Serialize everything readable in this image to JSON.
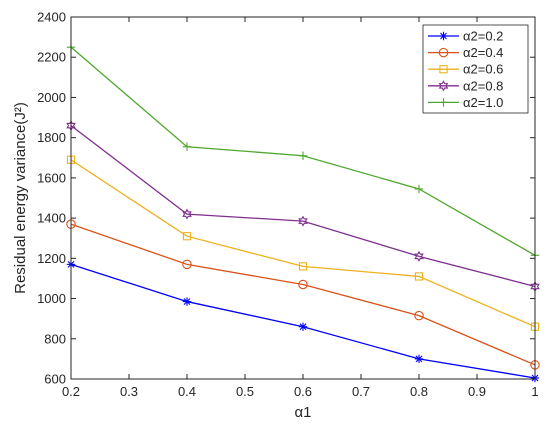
{
  "chart_data": {
    "type": "line",
    "xlabel": "α1",
    "ylabel": "Residual energy variance(J²)",
    "x": [
      0.2,
      0.4,
      0.6,
      0.8,
      1.0
    ],
    "xticks": [
      "0.2",
      "0.3",
      "0.4",
      "0.5",
      "0.6",
      "0.7",
      "0.8",
      "0.9",
      "1"
    ],
    "yticks": [
      "600",
      "800",
      "1000",
      "1200",
      "1400",
      "1600",
      "1800",
      "2000",
      "2200",
      "2400"
    ],
    "xlim": [
      0.2,
      1.0
    ],
    "ylim": [
      600,
      2400
    ],
    "grid": false,
    "legend_position": "top-right",
    "series": [
      {
        "name": "α2=0.2",
        "color": "#0000ff",
        "marker": "asterisk",
        "values": [
          1170,
          985,
          860,
          700,
          605
        ]
      },
      {
        "name": "α2=0.4",
        "color": "#d95319",
        "marker": "circle",
        "values": [
          1370,
          1170,
          1070,
          915,
          670
        ]
      },
      {
        "name": "α2=0.6",
        "color": "#edb120",
        "marker": "square",
        "values": [
          1690,
          1310,
          1160,
          1110,
          860
        ]
      },
      {
        "name": "α2=0.8",
        "color": "#7e2f8e",
        "marker": "hexagram",
        "values": [
          1860,
          1420,
          1385,
          1210,
          1060
        ]
      },
      {
        "name": "α2=1.0",
        "color": "#4ea72e",
        "marker": "plus",
        "values": [
          2250,
          1755,
          1710,
          1545,
          1215
        ]
      }
    ]
  }
}
